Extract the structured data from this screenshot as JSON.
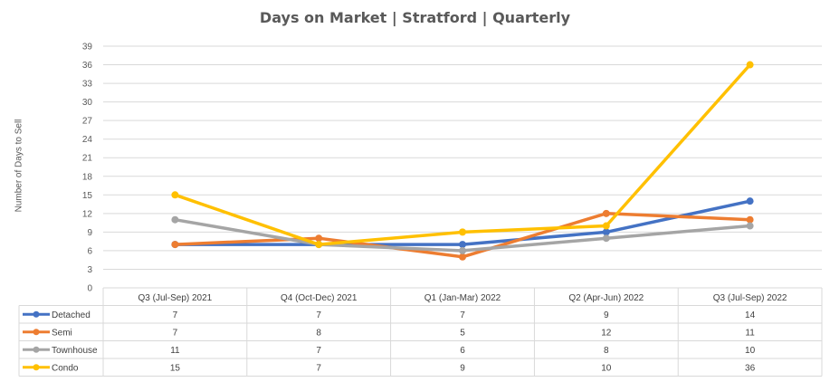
{
  "chart_data": {
    "type": "line",
    "title": "Days on Market | Stratford | Quarterly",
    "ylabel": "Number of Days to Sell",
    "xlabel": "",
    "ylim": [
      0,
      39
    ],
    "yticks": [
      0,
      3,
      6,
      9,
      12,
      15,
      18,
      21,
      24,
      27,
      30,
      33,
      36,
      39
    ],
    "grid": true,
    "categories": [
      "Q3 (Jul-Sep) 2021",
      "Q4 (Oct-Dec) 2021",
      "Q1 (Jan-Mar) 2022",
      "Q2 (Apr-Jun) 2022",
      "Q3 (Jul-Sep) 2022"
    ],
    "series": [
      {
        "name": "Detached",
        "color": "#4472C4",
        "values": [
          7,
          7,
          7,
          9,
          14
        ]
      },
      {
        "name": "Semi",
        "color": "#ED7D31",
        "values": [
          7,
          8,
          5,
          12,
          11
        ]
      },
      {
        "name": "Townhouse",
        "color": "#A5A5A5",
        "values": [
          11,
          7,
          6,
          8,
          10
        ]
      },
      {
        "name": "Condo",
        "color": "#FFC000",
        "values": [
          15,
          7,
          9,
          10,
          36
        ]
      }
    ],
    "legend": "data-table-bottom"
  }
}
